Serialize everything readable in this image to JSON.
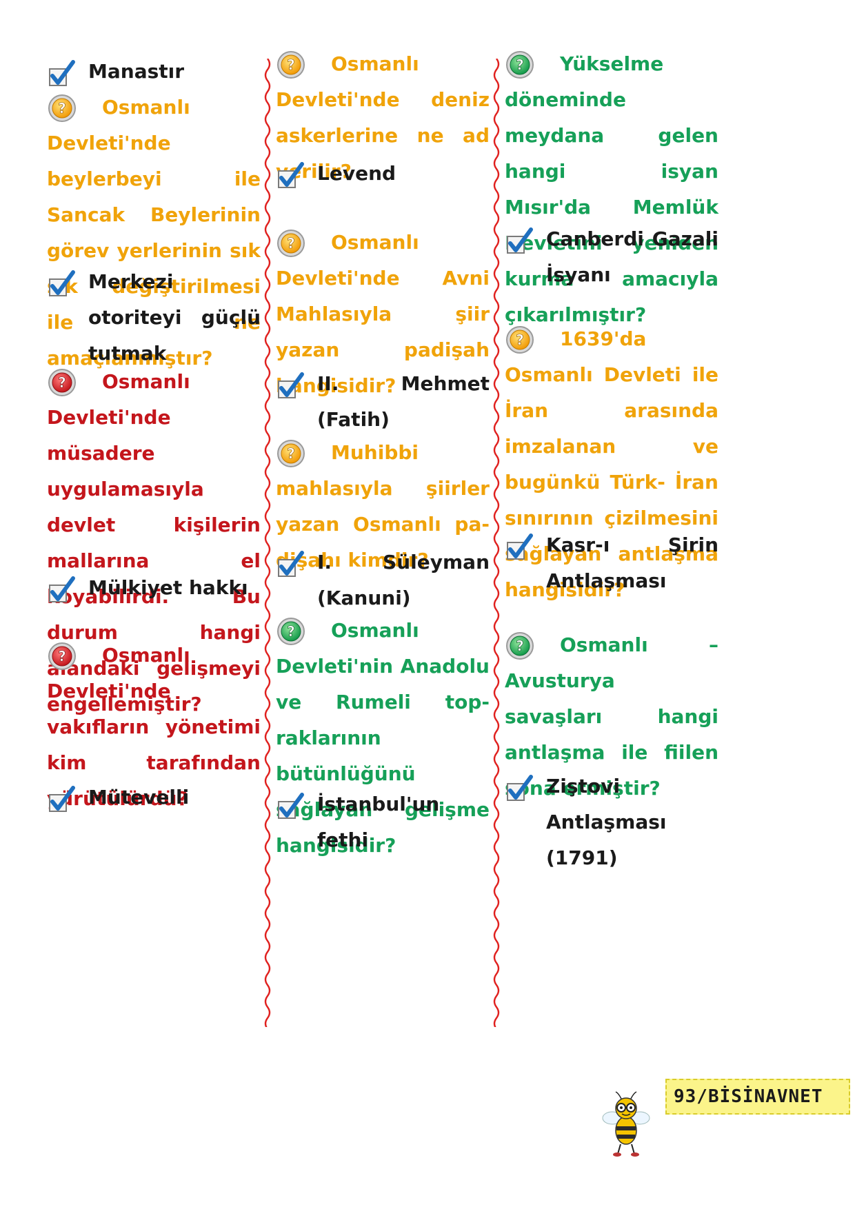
{
  "col1": {
    "answer_manastir": "Manastır",
    "q_beylerbeyi": "Osmanlı Devleti'n­de beylerbeyi ile Sancak Beylerinin görev yerleri­nin sık sık değiştirilmesi ile ne amaçlanmıştır?",
    "answer_merkezi": "Merkezi otoriteyi güçlü tutmak",
    "q_musadere": "Osmanlı Devleti'n­de müsadere uygulama­sıyla devlet kişilerin mal­larına el koyabilirdi. Bu durum hangi alandaki ge­lişmeyi engellemiştir?",
    "answer_mulkiyet": "Mülkiyet hakkı",
    "q_vakif": "Osmanlı Devleti'n­de vakıfların yönetimi kim tarafından yürütülür­dü?",
    "answer_mutevelli": "Mütevelli"
  },
  "col2": {
    "q_deniz": "Osmanlı Devleti'n­de deniz askerlerine ne ad verilir?",
    "answer_levend": "Levend",
    "q_avni": "Osmanlı Devleti'n­de Avni Mahlasıyla şiir yazan padişah hangisi­dir?",
    "answer_fatih": "II. Mehmet (Fatih)",
    "q_muhibbi": "Muhibbi mahlasıyla şiirler yazan Osmanlı pa­dişahı kimdir?",
    "answer_kanuni": "I. Süleyman (Kanuni)",
    "q_anadolu": "Osmanlı Devleti'nin Anadolu ve Rumeli top­raklarının bütünlüğünü sağlayan gelişme hangi­sidir?",
    "answer_istanbul": "İstanbul'un fethi"
  },
  "col3": {
    "q_yukselme": "Yükselme dönemin­de meydana gelen hangi isyan Mısır'da Memlük Devletini yeniden kurma amacıyla çıkarılmıştır?",
    "answer_canberdi": "Canberdi Gazali İsya­nı",
    "q_1639": "1639'da Osmanlı Devleti ile İran arasında imzalanan ve bugünkü Türk- İran sınırının çizil­mesini sağlayan antlaş­ma hangisidir?",
    "answer_kasr": "Kasr-ı Şirin Antlaş­ması",
    "q_avusturya": "Osmanlı – Avustur­ya savaşları hangi antlaş­ma ile fiilen sona ermiş­tir?",
    "answer_zistovi": "Ziştovi Antlaşması (1791)"
  },
  "footer": {
    "badge": "93/BİSİNAVNET"
  },
  "colors": {
    "orange": "#f0a30a",
    "red": "#c4161c",
    "green": "#16a058",
    "divider": "#e0201e",
    "check": "#1f6fbf"
  }
}
